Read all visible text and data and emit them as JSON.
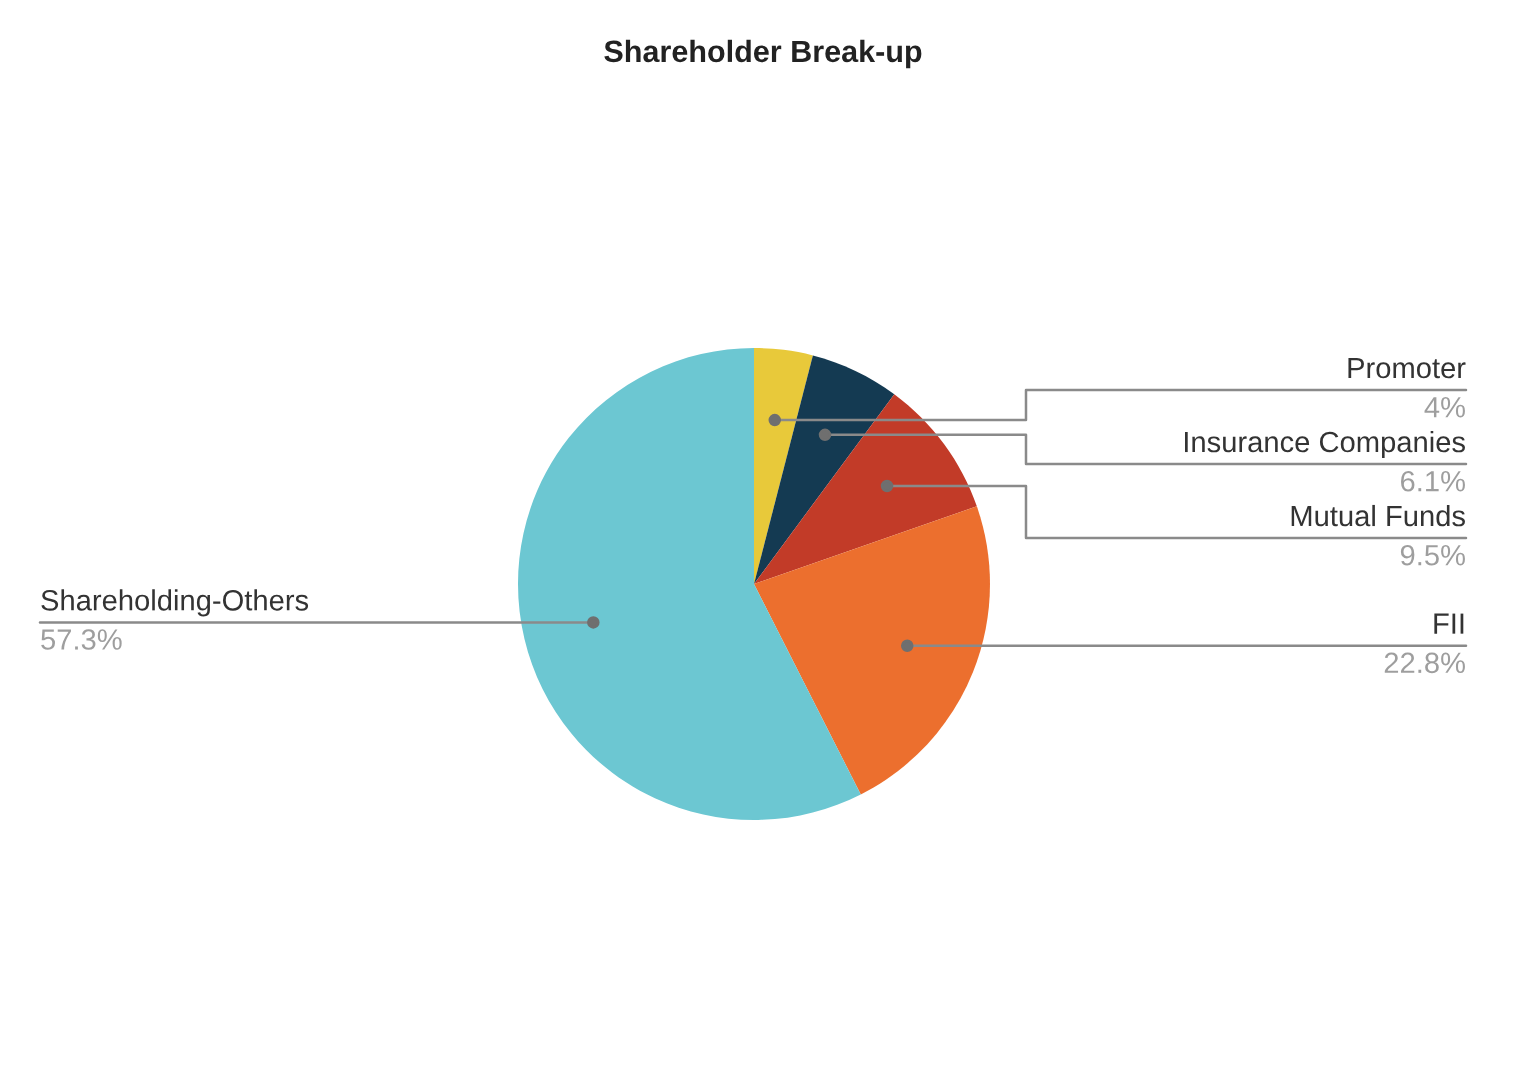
{
  "chart_data": {
    "type": "pie",
    "title": "Shareholder Break-up",
    "categories": [
      "Promoter",
      "Insurance Companies",
      "Mutual Funds",
      "FII",
      "Shareholding-Others"
    ],
    "values": [
      4,
      6.1,
      9.5,
      22.8,
      57.3
    ],
    "colors": [
      "#e8c93a",
      "#143a52",
      "#c23b28",
      "#ec6f2e",
      "#6cc7d2"
    ],
    "value_labels": [
      "4%",
      "6.1%",
      "9.5%",
      "22.8%",
      "57.3%"
    ]
  }
}
